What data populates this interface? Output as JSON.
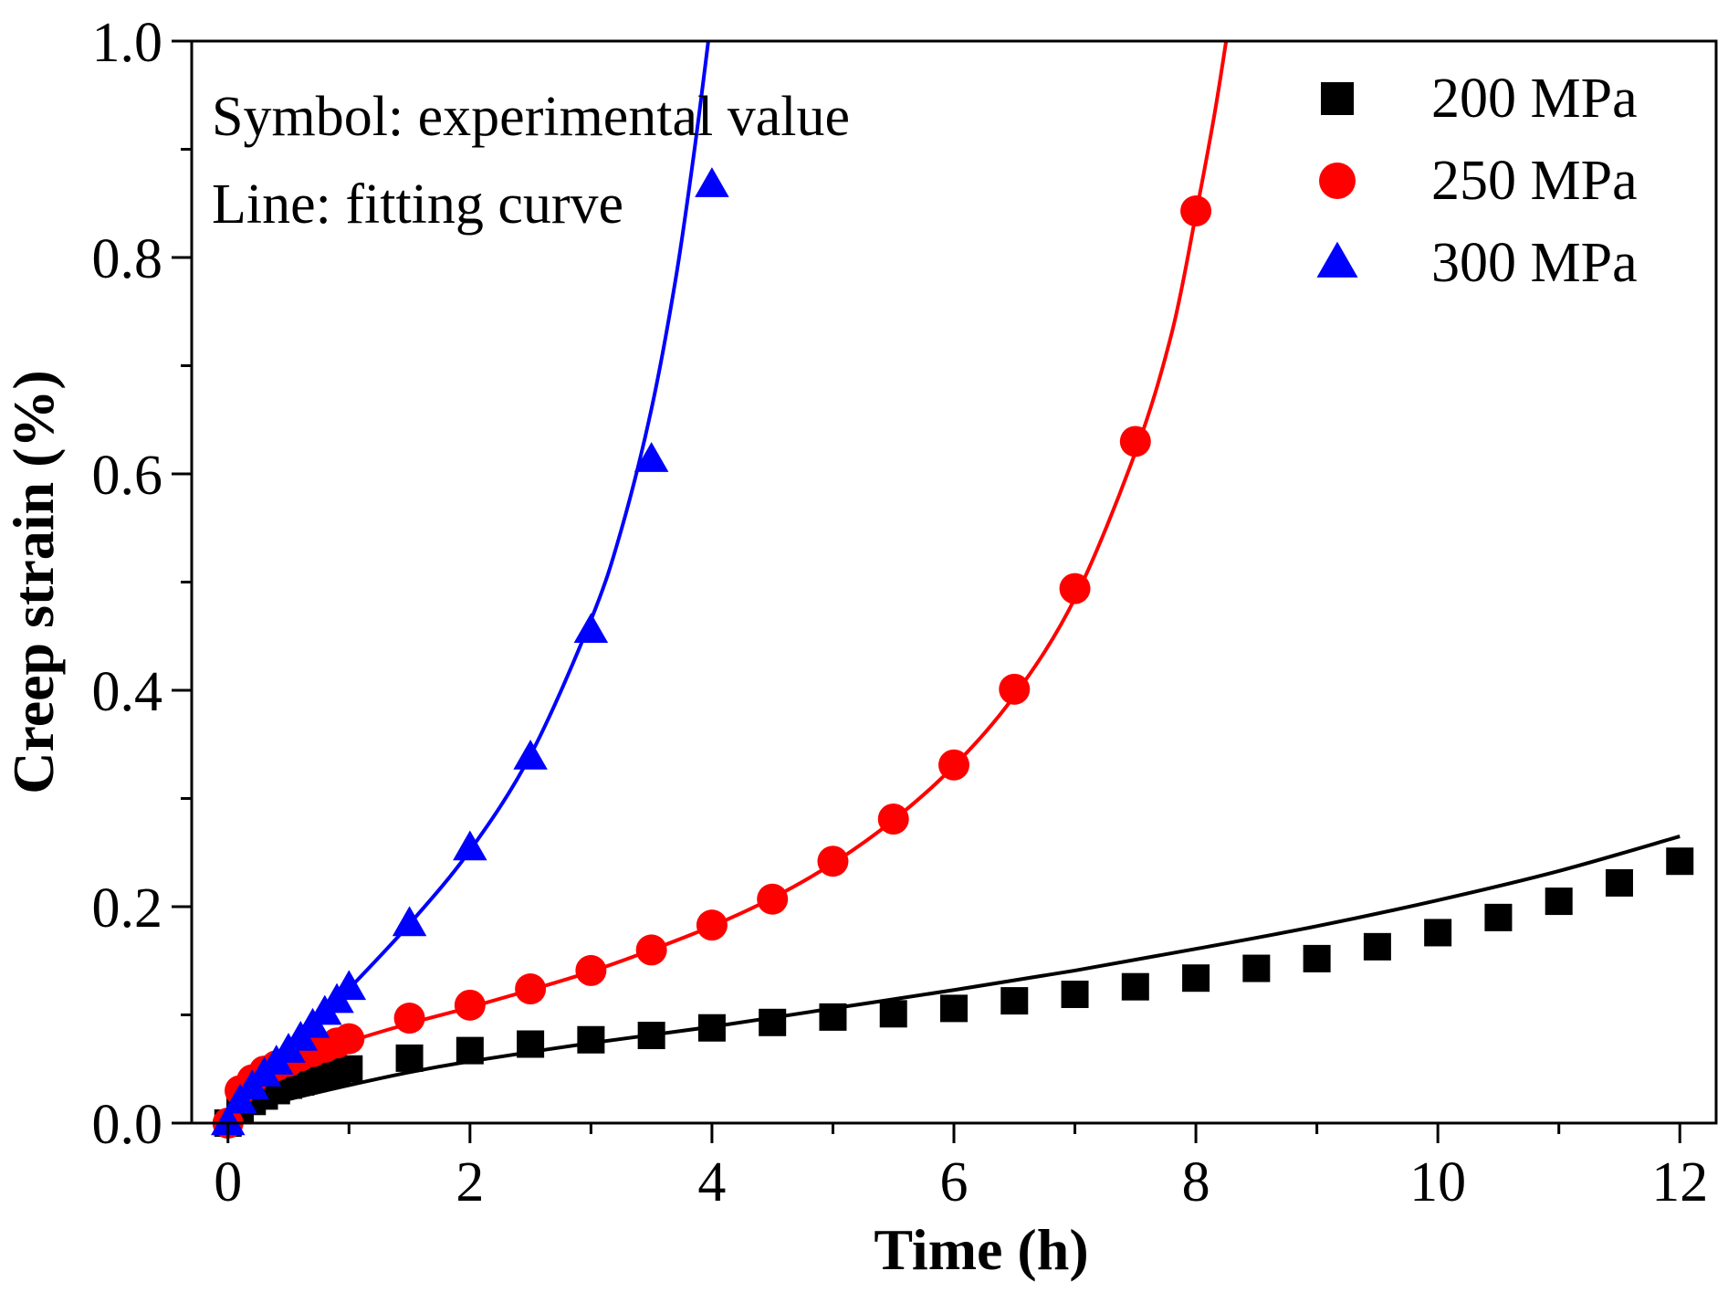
{
  "chart_data": {
    "type": "scatter",
    "title": "",
    "xlabel": "Time (h)",
    "ylabel": "Creep strain (%)",
    "xlim": [
      -0.3,
      12.3
    ],
    "ylim": [
      0.0,
      1.0
    ],
    "xticks": [
      0,
      2,
      4,
      6,
      8,
      10,
      12
    ],
    "xtick_labels": [
      "0",
      "2",
      "4",
      "6",
      "8",
      "10",
      "12"
    ],
    "yticks": [
      0.0,
      0.2,
      0.4,
      0.6,
      0.8,
      1.0
    ],
    "ytick_labels": [
      "0.0",
      "0.2",
      "0.4",
      "0.6",
      "0.8",
      "1.0"
    ],
    "grid": false,
    "legend_position": "top-right",
    "annotations": [
      "Symbol: experimental value",
      "Line: fitting curve"
    ],
    "series": [
      {
        "name": "200 MPa",
        "marker": "square",
        "color": "#000000",
        "x": [
          0,
          0.1,
          0.2,
          0.3,
          0.4,
          0.5,
          0.6,
          0.7,
          0.8,
          0.9,
          1.0,
          1.5,
          2.0,
          2.5,
          3.0,
          3.5,
          4.0,
          4.5,
          5.0,
          5.5,
          6.0,
          6.5,
          7.0,
          7.5,
          8.0,
          8.5,
          9.0,
          9.5,
          10.0,
          10.5,
          11.0,
          11.5,
          12.0
        ],
        "y": [
          0.0,
          0.012,
          0.02,
          0.025,
          0.03,
          0.035,
          0.038,
          0.041,
          0.044,
          0.047,
          0.05,
          0.06,
          0.067,
          0.073,
          0.077,
          0.081,
          0.088,
          0.093,
          0.098,
          0.101,
          0.106,
          0.113,
          0.119,
          0.126,
          0.134,
          0.143,
          0.152,
          0.163,
          0.176,
          0.19,
          0.205,
          0.222,
          0.242
        ],
        "fit": {
          "x": [
            0,
            0.1,
            0.3,
            0.5,
            1.0,
            1.5,
            2.0,
            3.0,
            4.0,
            5.0,
            6.0,
            7.0,
            8.0,
            9.0,
            10.0,
            11.0,
            12.0
          ],
          "y": [
            0.0,
            0.008,
            0.016,
            0.022,
            0.035,
            0.047,
            0.057,
            0.074,
            0.089,
            0.106,
            0.123,
            0.141,
            0.161,
            0.182,
            0.206,
            0.233,
            0.265
          ]
        }
      },
      {
        "name": "250 MPa",
        "marker": "circle",
        "color": "#ff0000",
        "x": [
          0,
          0.1,
          0.2,
          0.3,
          0.4,
          0.5,
          0.6,
          0.7,
          0.8,
          0.9,
          1.0,
          1.5,
          2.0,
          2.5,
          3.0,
          3.5,
          4.0,
          4.5,
          5.0,
          5.5,
          6.0,
          6.5,
          7.0,
          7.5,
          8.0
        ],
        "y": [
          0.0,
          0.03,
          0.04,
          0.048,
          0.053,
          0.057,
          0.062,
          0.066,
          0.07,
          0.074,
          0.078,
          0.097,
          0.109,
          0.124,
          0.141,
          0.16,
          0.183,
          0.207,
          0.242,
          0.281,
          0.331,
          0.401,
          0.494,
          0.63,
          0.843
        ],
        "fit": {
          "x": [
            0,
            0.1,
            0.3,
            0.5,
            1.0,
            1.5,
            2.0,
            2.5,
            3.0,
            3.5,
            4.0,
            4.5,
            5.0,
            5.5,
            6.0,
            6.5,
            7.0,
            7.5,
            7.8,
            8.0,
            8.15,
            8.25
          ],
          "y": [
            0.0,
            0.022,
            0.041,
            0.052,
            0.075,
            0.092,
            0.107,
            0.123,
            0.14,
            0.16,
            0.182,
            0.208,
            0.24,
            0.28,
            0.33,
            0.395,
            0.485,
            0.62,
            0.73,
            0.84,
            0.93,
            1.0
          ]
        }
      },
      {
        "name": "300 MPa",
        "marker": "triangle",
        "color": "#0000ff",
        "x": [
          0,
          0.1,
          0.2,
          0.3,
          0.4,
          0.5,
          0.6,
          0.7,
          0.8,
          0.9,
          1.0,
          1.5,
          2.0,
          2.5,
          3.0,
          3.5,
          4.0
        ],
        "y": [
          0.0,
          0.02,
          0.033,
          0.045,
          0.056,
          0.067,
          0.078,
          0.09,
          0.102,
          0.113,
          0.125,
          0.184,
          0.254,
          0.338,
          0.455,
          0.613,
          0.867
        ],
        "fit": {
          "x": [
            0,
            0.1,
            0.3,
            0.5,
            1.0,
            1.5,
            2.0,
            2.5,
            3.0,
            3.25,
            3.5,
            3.7,
            3.85,
            3.97
          ],
          "y": [
            0.0,
            0.018,
            0.042,
            0.066,
            0.124,
            0.184,
            0.252,
            0.34,
            0.465,
            0.548,
            0.66,
            0.78,
            0.895,
            1.0
          ]
        }
      }
    ]
  }
}
